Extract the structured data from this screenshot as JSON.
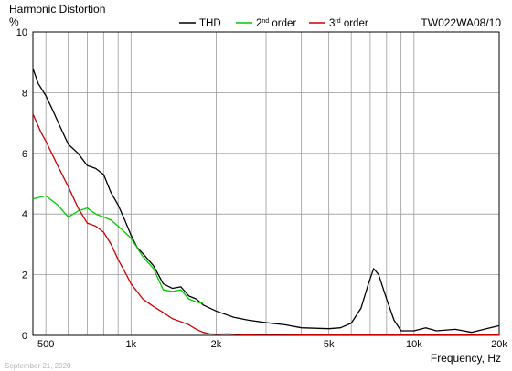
{
  "chart_data": {
    "type": "line",
    "title": "Harmonic Distortion",
    "model": "TW022WA08/10",
    "ylabel": "%",
    "xlabel": "Frequency, Hz",
    "date": "September 21, 2020",
    "x_scale": "log",
    "xlim": [
      450,
      20000
    ],
    "ylim": [
      0,
      10
    ],
    "grid": true,
    "legend_position": "top",
    "x_ticks": [
      {
        "value": 500,
        "label": "500"
      },
      {
        "value": 1000,
        "label": "1k"
      },
      {
        "value": 2000,
        "label": "2k"
      },
      {
        "value": 5000,
        "label": "5k"
      },
      {
        "value": 10000,
        "label": "10k"
      },
      {
        "value": 20000,
        "label": "20k"
      }
    ],
    "y_ticks": [
      {
        "value": 0,
        "label": "0"
      },
      {
        "value": 2,
        "label": "2"
      },
      {
        "value": 4,
        "label": "4"
      },
      {
        "value": 6,
        "label": "6"
      },
      {
        "value": 8,
        "label": "8"
      },
      {
        "value": 10,
        "label": "10"
      }
    ],
    "series": [
      {
        "name": "THD",
        "color": "#000000",
        "points": [
          [
            450,
            8.8
          ],
          [
            470,
            8.3
          ],
          [
            500,
            7.9
          ],
          [
            530,
            7.4
          ],
          [
            560,
            6.9
          ],
          [
            600,
            6.3
          ],
          [
            650,
            6.0
          ],
          [
            700,
            5.6
          ],
          [
            750,
            5.5
          ],
          [
            800,
            5.3
          ],
          [
            850,
            4.7
          ],
          [
            900,
            4.3
          ],
          [
            950,
            3.8
          ],
          [
            1000,
            3.3
          ],
          [
            1050,
            2.9
          ],
          [
            1100,
            2.7
          ],
          [
            1200,
            2.3
          ],
          [
            1300,
            1.7
          ],
          [
            1400,
            1.55
          ],
          [
            1500,
            1.6
          ],
          [
            1600,
            1.3
          ],
          [
            1700,
            1.2
          ],
          [
            1800,
            1.0
          ],
          [
            2000,
            0.8
          ],
          [
            2300,
            0.6
          ],
          [
            2600,
            0.5
          ],
          [
            3000,
            0.42
          ],
          [
            3500,
            0.35
          ],
          [
            4000,
            0.25
          ],
          [
            5000,
            0.22
          ],
          [
            5500,
            0.25
          ],
          [
            6000,
            0.4
          ],
          [
            6500,
            0.9
          ],
          [
            6900,
            1.7
          ],
          [
            7200,
            2.2
          ],
          [
            7500,
            2.0
          ],
          [
            8000,
            1.2
          ],
          [
            8500,
            0.5
          ],
          [
            9000,
            0.15
          ],
          [
            10000,
            0.15
          ],
          [
            11000,
            0.25
          ],
          [
            12000,
            0.15
          ],
          [
            14000,
            0.2
          ],
          [
            16000,
            0.1
          ],
          [
            18000,
            0.22
          ],
          [
            20000,
            0.32
          ]
        ]
      },
      {
        "name": "2nd order",
        "color": "#00cc00",
        "points": [
          [
            450,
            4.5
          ],
          [
            500,
            4.6
          ],
          [
            550,
            4.3
          ],
          [
            600,
            3.9
          ],
          [
            650,
            4.1
          ],
          [
            700,
            4.2
          ],
          [
            750,
            4.0
          ],
          [
            800,
            3.9
          ],
          [
            850,
            3.8
          ],
          [
            900,
            3.6
          ],
          [
            950,
            3.4
          ],
          [
            1000,
            3.2
          ],
          [
            1100,
            2.6
          ],
          [
            1200,
            2.2
          ],
          [
            1300,
            1.5
          ],
          [
            1400,
            1.45
          ],
          [
            1500,
            1.5
          ],
          [
            1600,
            1.2
          ],
          [
            1700,
            1.1
          ],
          [
            1800,
            1.05
          ]
        ]
      },
      {
        "name": "3rd order",
        "color": "#cc0000",
        "points": [
          [
            450,
            7.3
          ],
          [
            480,
            6.7
          ],
          [
            500,
            6.4
          ],
          [
            550,
            5.6
          ],
          [
            600,
            4.9
          ],
          [
            650,
            4.2
          ],
          [
            700,
            3.7
          ],
          [
            750,
            3.6
          ],
          [
            800,
            3.4
          ],
          [
            850,
            3.0
          ],
          [
            900,
            2.5
          ],
          [
            950,
            2.1
          ],
          [
            1000,
            1.7
          ],
          [
            1100,
            1.2
          ],
          [
            1200,
            0.95
          ],
          [
            1300,
            0.75
          ],
          [
            1400,
            0.55
          ],
          [
            1500,
            0.45
          ],
          [
            1600,
            0.35
          ],
          [
            1700,
            0.2
          ],
          [
            1800,
            0.1
          ],
          [
            1900,
            0.05
          ],
          [
            2000,
            0.04
          ],
          [
            2200,
            0.05
          ],
          [
            2500,
            0.02
          ],
          [
            3000,
            0.03
          ],
          [
            4000,
            0.02
          ],
          [
            5000,
            0.02
          ],
          [
            7000,
            0.02
          ],
          [
            10000,
            0.02
          ],
          [
            14000,
            0.02
          ],
          [
            20000,
            0.01
          ]
        ]
      }
    ]
  }
}
